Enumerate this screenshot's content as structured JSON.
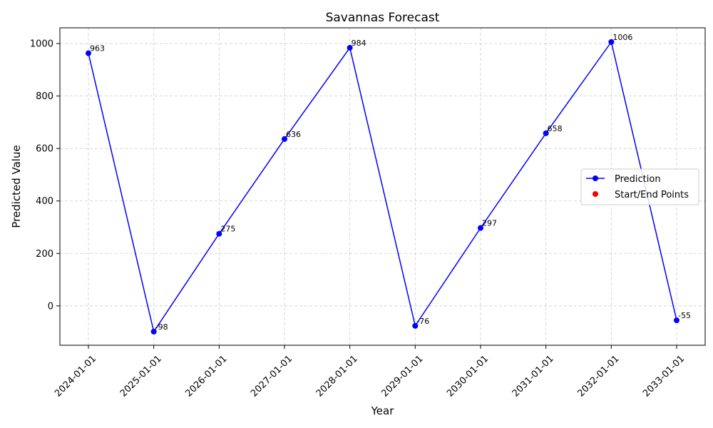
{
  "chart_data": {
    "type": "line",
    "title": "Savannas Forecast",
    "xlabel": "Year",
    "ylabel": "Predicted Value",
    "categories": [
      "2024-01-01",
      "2025-01-01",
      "2026-01-01",
      "2027-01-01",
      "2028-01-01",
      "2029-01-01",
      "2030-01-01",
      "2031-01-01",
      "2032-01-01",
      "2033-01-01"
    ],
    "series": [
      {
        "name": "Prediction",
        "color": "#0000ff",
        "values": [
          963,
          -98,
          275,
          636,
          984,
          -76,
          297,
          658,
          1006,
          -55
        ],
        "labels": [
          "963",
          "-98",
          "275",
          "636",
          "984",
          "-76",
          "297",
          "658",
          "1006",
          "-55"
        ]
      }
    ],
    "extra_legend": {
      "name": "Start/End Points",
      "color": "#ff0000"
    },
    "ylim": [
      -150,
      1060
    ],
    "yticks": [
      0,
      200,
      400,
      600,
      800,
      1000
    ],
    "ytick_labels": [
      "0",
      "200",
      "400",
      "600",
      "800",
      "1000"
    ],
    "grid": true,
    "legend_position": "center-right"
  }
}
